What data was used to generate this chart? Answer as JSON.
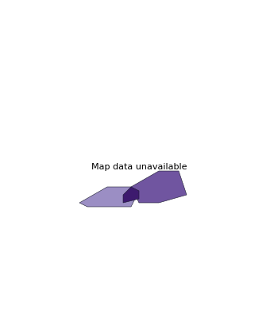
{
  "title": "",
  "background_color": "#ffffff",
  "ocean_color": "#ffffff",
  "colors": {
    "green": "#3a9e5f",
    "light_purple": "#9b8ec4",
    "medium_purple": "#7055a0",
    "dark_purple": "#3d1a6e"
  },
  "extent": [
    -25,
    45,
    34,
    72
  ],
  "figsize": [
    3.5,
    4.2
  ],
  "dpi": 100,
  "country_colors": {
    "Iceland": "green",
    "Norway": "green",
    "Sweden": "green",
    "Finland": "green",
    "United Kingdom": "green",
    "Ireland": "green",
    "Portugal": "green",
    "Spain": "green",
    "Italy": "green",
    "Greece": "green",
    "Malta": "green",
    "Cyprus": "green",
    "France": "light_purple",
    "Turkey": "light_purple",
    "Ukraine": "light_purple",
    "Belarus": "light_purple",
    "Moldova": "light_purple",
    "Russia": "light_purple",
    "Denmark": "medium_purple",
    "Estonia": "medium_purple",
    "Latvia": "medium_purple",
    "Lithuania": "medium_purple",
    "Netherlands": "medium_purple",
    "Belgium": "medium_purple",
    "Luxembourg": "medium_purple",
    "Germany": "medium_purple",
    "Austria": "medium_purple",
    "Poland": "medium_purple",
    "Czechia": "medium_purple",
    "Slovakia": "medium_purple",
    "Hungary": "medium_purple",
    "Romania": "medium_purple",
    "Bulgaria": "medium_purple",
    "Serbia": "medium_purple",
    "Croatia": "medium_purple",
    "Slovenia": "medium_purple",
    "Bosnia and Herzegovina": "medium_purple",
    "Montenegro": "medium_purple",
    "North Macedonia": "medium_purple",
    "Albania": "medium_purple",
    "Kosovo": "medium_purple",
    "Switzerland": "dark_purple",
    "Liechtenstein": "dark_purple"
  }
}
